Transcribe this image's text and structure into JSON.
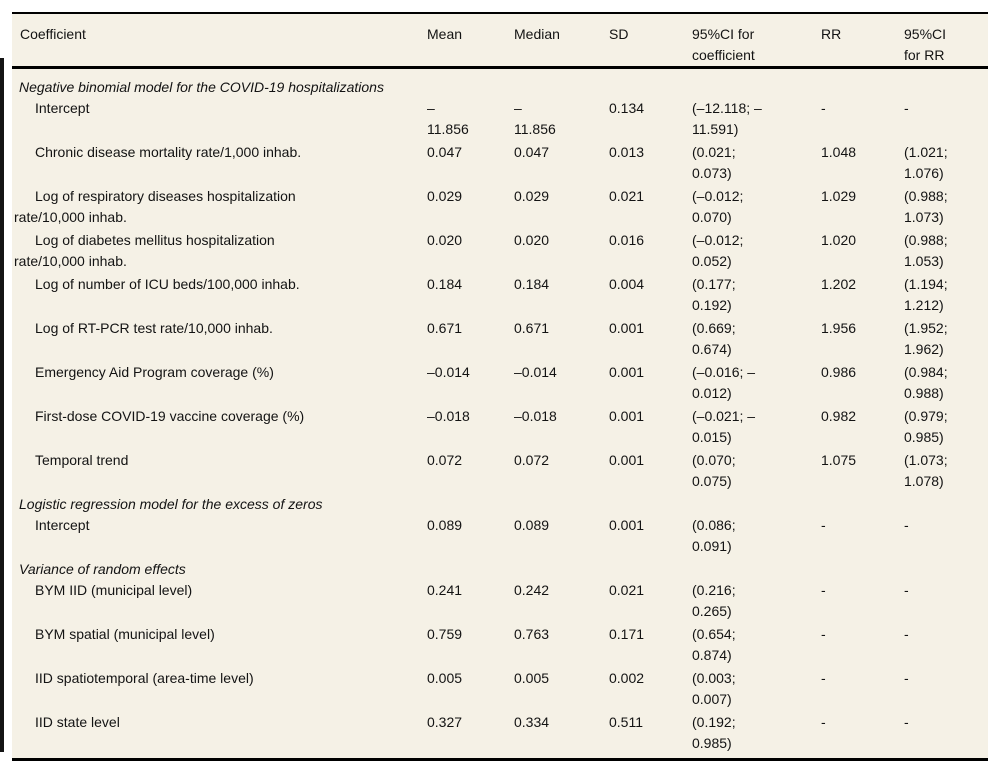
{
  "colors": {
    "table_background": "#f5f1e6",
    "rule": "#000000",
    "text": "#131313"
  },
  "table": {
    "columns": [
      "Coefficient",
      "Mean",
      "Median",
      "SD",
      "95%CI for\ncoefficient",
      "RR",
      "95%CI\nfor RR"
    ],
    "sections": [
      {
        "title": "Negative binomial model for the COVID-19 hospitalizations",
        "rows": [
          {
            "label": "Intercept",
            "mean": "–\n11.856",
            "median": "–\n11.856",
            "sd": "0.134",
            "ci": "(–12.118; –\n11.591)",
            "rr": "-",
            "ci_rr": "-"
          },
          {
            "label": "Chronic disease mortality rate/1,000 inhab.",
            "mean": "0.047",
            "median": "0.047",
            "sd": "0.013",
            "ci": "(0.021;\n0.073)",
            "rr": "1.048",
            "ci_rr": "(1.021;\n1.076)"
          },
          {
            "label": "Log of respiratory diseases hospitalization\nrate/10,000 inhab.",
            "mean": "0.029",
            "median": "0.029",
            "sd": "0.021",
            "ci": "(–0.012;\n0.070)",
            "rr": "1.029",
            "ci_rr": "(0.988;\n1.073)"
          },
          {
            "label": "Log of diabetes mellitus hospitalization\nrate/10,000 inhab.",
            "mean": "0.020",
            "median": "0.020",
            "sd": "0.016",
            "ci": "(–0.012;\n0.052)",
            "rr": "1.020",
            "ci_rr": "(0.988;\n1.053)"
          },
          {
            "label": "Log of number of ICU beds/100,000 inhab.",
            "mean": "0.184",
            "median": "0.184",
            "sd": "0.004",
            "ci": "(0.177;\n0.192)",
            "rr": "1.202",
            "ci_rr": "(1.194;\n1.212)"
          },
          {
            "label": "Log of RT-PCR test rate/10,000 inhab.",
            "mean": "0.671",
            "median": "0.671",
            "sd": "0.001",
            "ci": "(0.669;\n0.674)",
            "rr": "1.956",
            "ci_rr": "(1.952;\n1.962)"
          },
          {
            "label": "Emergency Aid Program coverage (%)",
            "mean": "–0.014",
            "median": "–0.014",
            "sd": "0.001",
            "ci": "(–0.016; –\n0.012)",
            "rr": "0.986",
            "ci_rr": "(0.984;\n0.988)"
          },
          {
            "label": "First-dose COVID-19 vaccine coverage (%)",
            "mean": "–0.018",
            "median": "–0.018",
            "sd": "0.001",
            "ci": "(–0.021; –\n0.015)",
            "rr": "0.982",
            "ci_rr": "(0.979;\n0.985)"
          },
          {
            "label": "Temporal trend",
            "mean": "0.072",
            "median": "0.072",
            "sd": "0.001",
            "ci": "(0.070;\n0.075)",
            "rr": "1.075",
            "ci_rr": "(1.073;\n1.078)"
          }
        ]
      },
      {
        "title": "Logistic regression model for the excess of zeros",
        "rows": [
          {
            "label": "Intercept",
            "mean": "0.089",
            "median": "0.089",
            "sd": "0.001",
            "ci": "(0.086;\n0.091)",
            "rr": "-",
            "ci_rr": "-"
          }
        ]
      },
      {
        "title": "Variance of random effects",
        "rows": [
          {
            "label": "BYM IID (municipal level)",
            "mean": "0.241",
            "median": "0.242",
            "sd": "0.021",
            "ci": "(0.216;\n0.265)",
            "rr": "-",
            "ci_rr": "-"
          },
          {
            "label": "BYM spatial (municipal level)",
            "mean": "0.759",
            "median": "0.763",
            "sd": "0.171",
            "ci": "(0.654;\n0.874)",
            "rr": "-",
            "ci_rr": "-"
          },
          {
            "label": "IID spatiotemporal (area-time level)",
            "mean": "0.005",
            "median": "0.005",
            "sd": "0.002",
            "ci": "(0.003;\n0.007)",
            "rr": "-",
            "ci_rr": "-"
          },
          {
            "label": "IID state level",
            "mean": "0.327",
            "median": "0.334",
            "sd": "0.511",
            "ci": "(0.192;\n0.985)",
            "rr": "-",
            "ci_rr": "-"
          }
        ]
      }
    ]
  }
}
